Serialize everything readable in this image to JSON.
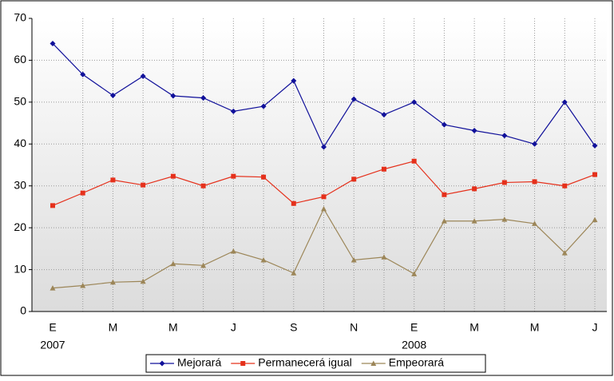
{
  "chart_data": {
    "type": "line",
    "categories": [
      "E",
      null,
      "M",
      null,
      "M",
      null,
      "J",
      null,
      "S",
      null,
      "N",
      null,
      "E",
      null,
      "M",
      null,
      "M",
      null,
      "J"
    ],
    "x_sublabels": [
      "2007",
      null,
      null,
      null,
      null,
      null,
      null,
      null,
      null,
      null,
      null,
      null,
      "2008",
      null,
      null,
      null,
      null,
      null,
      null
    ],
    "series": [
      {
        "name": "Mejorará",
        "color": "#10109a",
        "marker": "diamond",
        "values": [
          64,
          56.6,
          51.6,
          56.2,
          51.5,
          51,
          47.8,
          49,
          55.1,
          39.3,
          50.7,
          47,
          50,
          44.6,
          43.2,
          42,
          40,
          50,
          39.6
        ]
      },
      {
        "name": "Permanecerá igual",
        "color": "#e5301b",
        "marker": "square",
        "values": [
          25.3,
          28.3,
          31.4,
          30.2,
          32.3,
          30,
          32.3,
          32.1,
          25.8,
          27.4,
          31.6,
          34,
          35.9,
          27.9,
          29.3,
          30.8,
          31,
          30,
          32.7
        ]
      },
      {
        "name": "Empeorará",
        "color": "#9c8658",
        "marker": "triangle",
        "values": [
          5.6,
          6.2,
          7,
          7.2,
          11.4,
          11,
          14.4,
          12.3,
          9.2,
          24.5,
          12.3,
          13,
          9,
          21.6,
          21.6,
          22,
          21,
          14,
          21.9
        ]
      }
    ],
    "ylim": [
      0,
      70
    ],
    "yticks": [
      0,
      10,
      20,
      30,
      40,
      50,
      60,
      70
    ],
    "grid": true,
    "legend": "bottom"
  }
}
